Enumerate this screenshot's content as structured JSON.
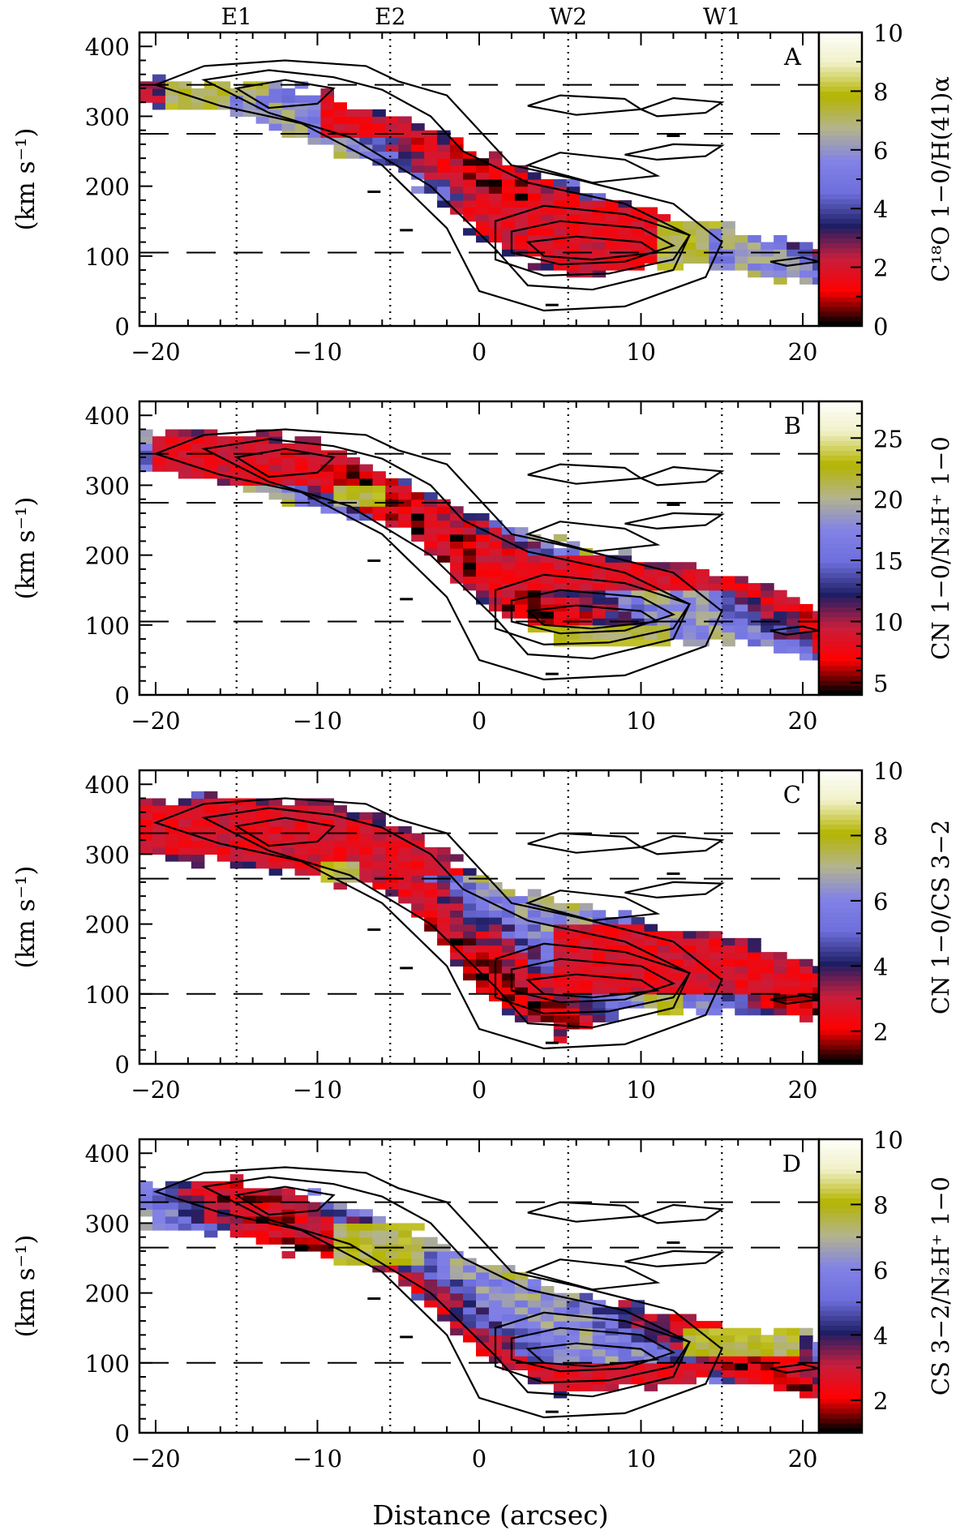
{
  "figure": {
    "xlabel": "Distance (arcsec)",
    "top_markers": [
      {
        "label": "E1",
        "x": -15
      },
      {
        "label": "E2",
        "x": -5.5
      },
      {
        "label": "W2",
        "x": 5.5
      },
      {
        "label": "W1",
        "x": 15
      }
    ]
  },
  "colors": {
    "ramp": [
      "#000000",
      "#ff0000",
      "#c81e3c",
      "#1e1e64",
      "#6e6edc",
      "#8282e6",
      "#b4b48c",
      "#b4b400",
      "#f0f0c8",
      "#ffffff"
    ],
    "contour": "#000000",
    "frame": "#000000"
  },
  "chart_data": [
    {
      "panel": "A",
      "type": "heatmap",
      "title": "",
      "xlabel": "Distance (arcsec)",
      "ylabel": "(km s⁻¹)",
      "xlim": [
        -21,
        21
      ],
      "ylim": [
        0,
        420
      ],
      "xticks": [
        -20,
        -10,
        0,
        10,
        20
      ],
      "yticks": [
        0,
        100,
        200,
        300,
        400
      ],
      "colorbar": {
        "label": "C¹⁸O 1−0/H(41)α",
        "range": [
          0,
          10
        ],
        "ticks": [
          0,
          2,
          4,
          6,
          8,
          10
        ]
      },
      "hlines": [
        345,
        275,
        105
      ],
      "vlines": [
        -15,
        -5.5,
        5.5,
        15
      ],
      "band": [
        [
          -21,
          352,
          322
        ],
        [
          -15,
          350,
          300
        ],
        [
          -10,
          335,
          260
        ],
        [
          -5,
          300,
          220
        ],
        [
          0,
          250,
          130
        ],
        [
          5,
          210,
          70
        ],
        [
          10,
          175,
          80
        ],
        [
          15,
          145,
          85
        ],
        [
          21,
          115,
          55
        ]
      ],
      "low_ratio_regions": [
        {
          "x": [
            -10,
            -3
          ],
          "y": [
            270,
            340
          ]
        },
        {
          "x": [
            -2,
            13
          ],
          "y": [
            60,
            180
          ]
        }
      ],
      "high_ratio_regions": [
        {
          "x": [
            -19,
            -15
          ],
          "y": [
            300,
            360
          ]
        },
        {
          "x": [
            11,
            14
          ],
          "y": [
            80,
            150
          ]
        }
      ]
    },
    {
      "panel": "B",
      "type": "heatmap",
      "title": "",
      "xlabel": "Distance (arcsec)",
      "ylabel": "(km s⁻¹)",
      "xlim": [
        -21,
        21
      ],
      "ylim": [
        0,
        420
      ],
      "xticks": [
        -20,
        -10,
        0,
        10,
        20
      ],
      "yticks": [
        0,
        100,
        200,
        300,
        400
      ],
      "colorbar": {
        "label": "CN 1−0/N₂H⁺ 1−0",
        "range": [
          4,
          28
        ],
        "ticks": [
          5,
          10,
          15,
          20,
          25
        ]
      },
      "hlines": [
        345,
        275,
        105
      ],
      "vlines": [
        -15,
        -5.5,
        5.5,
        15
      ],
      "band": [
        [
          -21,
          375,
          320
        ],
        [
          -15,
          375,
          300
        ],
        [
          -10,
          365,
          270
        ],
        [
          -5,
          310,
          240
        ],
        [
          0,
          260,
          140
        ],
        [
          5,
          220,
          70
        ],
        [
          10,
          195,
          70
        ],
        [
          15,
          180,
          80
        ],
        [
          21,
          125,
          50
        ]
      ],
      "low_ratio_regions": [
        {
          "x": [
            -20,
            -10
          ],
          "y": [
            300,
            375
          ]
        },
        {
          "x": [
            0,
            21
          ],
          "y": [
            150,
            195
          ]
        }
      ],
      "high_ratio_regions": [
        {
          "x": [
            -9,
            -6
          ],
          "y": [
            270,
            300
          ]
        },
        {
          "x": [
            3,
            12
          ],
          "y": [
            70,
            95
          ]
        }
      ]
    },
    {
      "panel": "C",
      "type": "heatmap",
      "title": "",
      "xlabel": "Distance (arcsec)",
      "ylabel": "(km s⁻¹)",
      "xlim": [
        -21,
        21
      ],
      "ylim": [
        0,
        420
      ],
      "xticks": [
        -20,
        -10,
        0,
        10,
        20
      ],
      "yticks": [
        0,
        100,
        200,
        300,
        400
      ],
      "colorbar": {
        "label": "CN 1−0/CS 3−2",
        "range": [
          1,
          10
        ],
        "ticks": [
          2,
          4,
          6,
          8,
          10
        ]
      },
      "hlines": [
        330,
        265,
        100
      ],
      "vlines": [
        -15,
        -5.5,
        5.5,
        15
      ],
      "band": [
        [
          -21,
          375,
          300
        ],
        [
          -15,
          385,
          285
        ],
        [
          -10,
          375,
          265
        ],
        [
          -5,
          345,
          240
        ],
        [
          0,
          270,
          100
        ],
        [
          5,
          235,
          40
        ],
        [
          10,
          205,
          75
        ],
        [
          15,
          185,
          75
        ],
        [
          21,
          140,
          65
        ]
      ],
      "low_ratio_regions": [
        {
          "x": [
            -21,
            0
          ],
          "y": [
            270,
            380
          ]
        },
        {
          "x": [
            5,
            21
          ],
          "y": [
            100,
            200
          ]
        }
      ],
      "high_ratio_regions": [
        {
          "x": [
            -10,
            -7
          ],
          "y": [
            265,
            285
          ]
        },
        {
          "x": [
            10,
            13
          ],
          "y": [
            75,
            95
          ]
        }
      ]
    },
    {
      "panel": "D",
      "type": "heatmap",
      "title": "",
      "xlabel": "Distance (arcsec)",
      "ylabel": "(km s⁻¹)",
      "xlim": [
        -21,
        21
      ],
      "ylim": [
        0,
        420
      ],
      "xticks": [
        -20,
        -10,
        0,
        10,
        20
      ],
      "yticks": [
        0,
        100,
        200,
        300,
        400
      ],
      "colorbar": {
        "label": "CS 3−2/N₂H⁺ 1−0",
        "range": [
          1,
          10
        ],
        "ticks": [
          2,
          4,
          6,
          8,
          10
        ]
      },
      "hlines": [
        330,
        265,
        100
      ],
      "vlines": [
        -15,
        -5.5,
        5.5,
        15
      ],
      "band": [
        [
          -21,
          355,
          300
        ],
        [
          -15,
          360,
          280
        ],
        [
          -10,
          340,
          250
        ],
        [
          -5,
          300,
          220
        ],
        [
          0,
          250,
          110
        ],
        [
          5,
          200,
          55
        ],
        [
          10,
          180,
          60
        ],
        [
          15,
          150,
          75
        ],
        [
          21,
          140,
          50
        ]
      ],
      "low_ratio_regions": [
        {
          "x": [
            2,
            14
          ],
          "y": [
            55,
            95
          ]
        },
        {
          "x": [
            -15,
            -10
          ],
          "y": [
            280,
            300
          ]
        }
      ],
      "high_ratio_regions": [
        {
          "x": [
            -9,
            -3
          ],
          "y": [
            240,
            300
          ]
        },
        {
          "x": [
            13,
            20
          ],
          "y": [
            110,
            150
          ]
        }
      ]
    }
  ]
}
